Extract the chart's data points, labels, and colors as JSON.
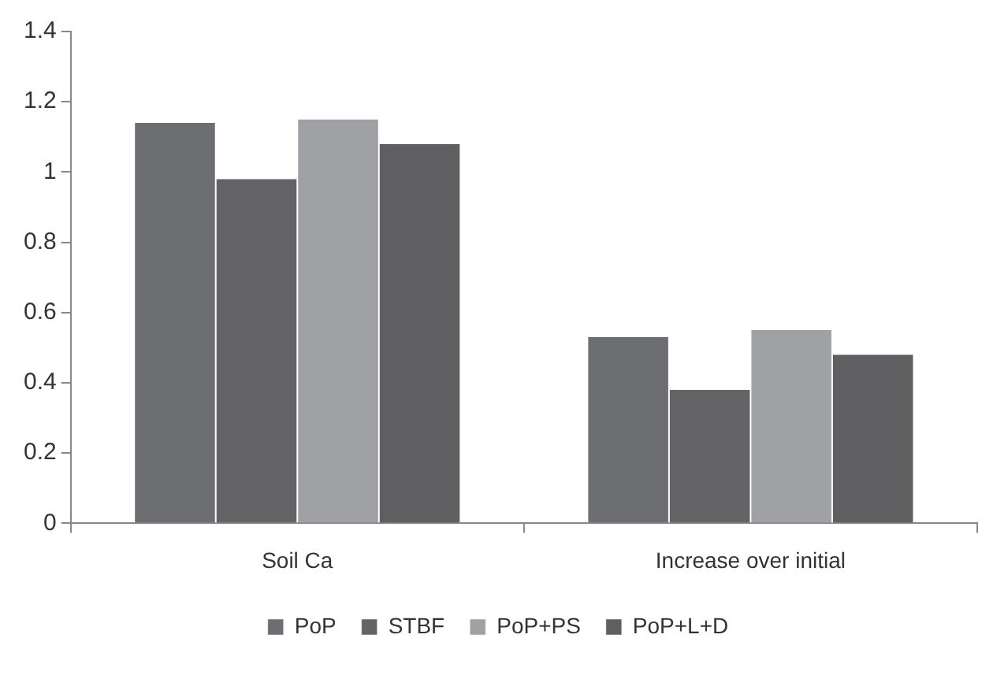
{
  "chart_data": {
    "type": "bar",
    "categories": [
      "Soil Ca",
      "Increase over initial"
    ],
    "series": [
      {
        "name": "PoP",
        "color": "#6d6e71",
        "values": [
          1.14,
          0.53
        ]
      },
      {
        "name": "STBF",
        "color": "#646466",
        "values": [
          0.98,
          0.38
        ]
      },
      {
        "name": "PoP+PS",
        "color": "#a0a1a4",
        "values": [
          1.15,
          0.55
        ]
      },
      {
        "name": "PoP+L+D",
        "color": "#5f5f61",
        "values": [
          1.08,
          0.48
        ]
      }
    ],
    "ylim": [
      0,
      1.4
    ],
    "yticks": [
      0,
      0.2,
      0.4,
      0.6,
      0.8,
      1,
      1.2,
      1.4
    ],
    "grid": false,
    "legend": "bottom"
  }
}
